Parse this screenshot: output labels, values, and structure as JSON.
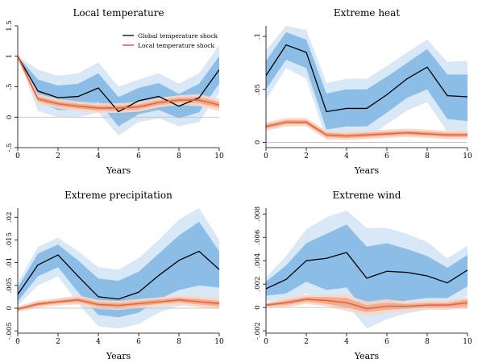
{
  "chart_data": [
    {
      "type": "line",
      "title": "Local temperature",
      "xlabel": "Years",
      "x": [
        0,
        1,
        2,
        3,
        4,
        5,
        6,
        7,
        8,
        9,
        10
      ],
      "xlim": [
        0,
        10
      ],
      "xticks": [
        0,
        2,
        4,
        6,
        8,
        10
      ],
      "ylim": [
        -0.5,
        1.5
      ],
      "yticks": [
        -0.5,
        0,
        0.5,
        1,
        1.5
      ],
      "ytick_labels": [
        "-.5",
        "0",
        ".5",
        "1",
        "1.5"
      ],
      "legend": {
        "position": "top-right",
        "entries": [
          "Global temperature shock",
          "Local temperature shock"
        ]
      },
      "series": [
        {
          "name": "Global temperature shock",
          "color": "#000000",
          "values": [
            1.0,
            0.43,
            0.32,
            0.34,
            0.48,
            0.09,
            0.27,
            0.34,
            0.18,
            0.32,
            0.78
          ],
          "band_inner": {
            "lower": [
              1.0,
              0.25,
              0.12,
              0.12,
              0.25,
              -0.15,
              0.05,
              0.12,
              -0.02,
              0.08,
              0.55
            ],
            "upper": [
              1.0,
              0.62,
              0.52,
              0.55,
              0.72,
              0.33,
              0.48,
              0.56,
              0.38,
              0.55,
              1.0
            ]
          },
          "band_outer": {
            "lower": [
              1.0,
              0.1,
              0.0,
              0.0,
              0.08,
              -0.3,
              -0.08,
              -0.02,
              -0.15,
              -0.08,
              0.4
            ],
            "upper": [
              1.0,
              0.78,
              0.68,
              0.72,
              0.9,
              0.5,
              0.62,
              0.72,
              0.55,
              0.72,
              1.18
            ]
          }
        },
        {
          "name": "Local temperature shock",
          "color": "#e8643a",
          "values": [
            1.0,
            0.3,
            0.22,
            0.18,
            0.15,
            0.15,
            0.17,
            0.24,
            0.28,
            0.28,
            0.2
          ],
          "band_inner": {
            "lower": [
              0.97,
              0.26,
              0.18,
              0.14,
              0.11,
              0.11,
              0.13,
              0.2,
              0.24,
              0.23,
              0.15
            ],
            "upper": [
              1.03,
              0.34,
              0.26,
              0.22,
              0.19,
              0.19,
              0.21,
              0.28,
              0.32,
              0.33,
              0.25
            ]
          },
          "band_outer": {
            "lower": [
              0.94,
              0.22,
              0.14,
              0.1,
              0.07,
              0.07,
              0.09,
              0.16,
              0.2,
              0.18,
              0.1
            ],
            "upper": [
              1.06,
              0.38,
              0.3,
              0.26,
              0.23,
              0.23,
              0.25,
              0.32,
              0.36,
              0.38,
              0.3
            ]
          }
        }
      ]
    },
    {
      "type": "line",
      "title": "Extreme heat",
      "xlabel": "Years",
      "x": [
        0,
        1,
        2,
        3,
        4,
        5,
        6,
        7,
        8,
        9,
        10
      ],
      "xlim": [
        0,
        10
      ],
      "xticks": [
        0,
        2,
        4,
        6,
        8,
        10
      ],
      "ylim": [
        -0.005,
        0.11
      ],
      "yticks": [
        0,
        0.05,
        0.1
      ],
      "ytick_labels": [
        "0",
        ".05",
        ".1"
      ],
      "series": [
        {
          "name": "Global temperature shock",
          "color": "#000000",
          "values": [
            0.063,
            0.092,
            0.085,
            0.029,
            0.032,
            0.032,
            0.045,
            0.06,
            0.071,
            0.044,
            0.043
          ],
          "band_inner": {
            "lower": [
              0.05,
              0.078,
              0.07,
              0.012,
              0.015,
              0.015,
              0.028,
              0.042,
              0.05,
              0.022,
              0.02
            ],
            "upper": [
              0.077,
              0.104,
              0.097,
              0.046,
              0.05,
              0.05,
              0.062,
              0.075,
              0.088,
              0.064,
              0.064
            ]
          },
          "band_outer": {
            "lower": [
              0.04,
              0.07,
              0.06,
              0.002,
              0.004,
              0.004,
              0.017,
              0.03,
              0.038,
              0.01,
              0.008
            ],
            "upper": [
              0.087,
              0.11,
              0.106,
              0.056,
              0.06,
              0.06,
              0.072,
              0.085,
              0.097,
              0.076,
              0.077
            ]
          }
        },
        {
          "name": "Local temperature shock",
          "color": "#e8643a",
          "values": [
            0.015,
            0.019,
            0.019,
            0.007,
            0.006,
            0.007,
            0.008,
            0.009,
            0.008,
            0.007,
            0.007
          ],
          "band_inner": {
            "lower": [
              0.013,
              0.017,
              0.017,
              0.005,
              0.004,
              0.005,
              0.006,
              0.007,
              0.006,
              0.005,
              0.005
            ],
            "upper": [
              0.017,
              0.021,
              0.021,
              0.009,
              0.008,
              0.009,
              0.01,
              0.011,
              0.01,
              0.009,
              0.009
            ]
          },
          "band_outer": {
            "lower": [
              0.011,
              0.015,
              0.015,
              0.003,
              0.002,
              0.003,
              0.004,
              0.005,
              0.004,
              0.003,
              0.003
            ],
            "upper": [
              0.019,
              0.023,
              0.023,
              0.011,
              0.01,
              0.011,
              0.012,
              0.013,
              0.012,
              0.011,
              0.011
            ]
          }
        }
      ]
    },
    {
      "type": "line",
      "title": "Extreme precipitation",
      "xlabel": "Years",
      "x": [
        0,
        1,
        2,
        3,
        4,
        5,
        6,
        7,
        8,
        9,
        10
      ],
      "xlim": [
        0,
        10
      ],
      "xticks": [
        0,
        2,
        4,
        6,
        8,
        10
      ],
      "ylim": [
        -0.0055,
        0.022
      ],
      "yticks": [
        -0.005,
        0,
        0.005,
        0.01,
        0.015,
        0.02
      ],
      "ytick_labels": [
        "-.005",
        "0",
        ".005",
        ".01",
        ".015",
        ".02"
      ],
      "series": [
        {
          "name": "Global temperature shock",
          "color": "#000000",
          "values": [
            0.003,
            0.0095,
            0.0117,
            0.007,
            0.0025,
            0.002,
            0.0035,
            0.0072,
            0.0105,
            0.0125,
            0.0085
          ],
          "band_inner": {
            "lower": [
              0.0015,
              0.007,
              0.009,
              0.0035,
              -0.0015,
              -0.002,
              -0.001,
              0.002,
              0.004,
              0.005,
              0.0045
            ],
            "upper": [
              0.0045,
              0.012,
              0.014,
              0.0105,
              0.0065,
              0.006,
              0.008,
              0.012,
              0.016,
              0.019,
              0.0125
            ]
          },
          "band_outer": {
            "lower": [
              0.0005,
              0.005,
              0.007,
              0.001,
              -0.004,
              -0.0045,
              -0.0035,
              -0.001,
              0.0005,
              0.001,
              0.002
            ],
            "upper": [
              0.0055,
              0.0135,
              0.0155,
              0.0125,
              0.009,
              0.0085,
              0.011,
              0.015,
              0.0195,
              0.022,
              0.015
            ]
          }
        },
        {
          "name": "Local temperature shock",
          "color": "#e8643a",
          "values": [
            -0.0002,
            0.0009,
            0.0014,
            0.0018,
            0.0008,
            0.0006,
            0.001,
            0.0014,
            0.0018,
            0.0014,
            0.001
          ],
          "band_inner": {
            "lower": [
              -0.0005,
              0.0005,
              0.001,
              0.0013,
              0.0003,
              0.0001,
              0.0005,
              0.0009,
              0.0013,
              0.0008,
              0.0004
            ],
            "upper": [
              0.0001,
              0.0013,
              0.0018,
              0.0023,
              0.0013,
              0.0011,
              0.0015,
              0.0019,
              0.0023,
              0.002,
              0.0016
            ]
          },
          "band_outer": {
            "lower": [
              -0.0008,
              0.0001,
              0.0006,
              0.0008,
              -0.0002,
              -0.0004,
              0.0,
              0.0004,
              0.0008,
              0.0002,
              -0.0002
            ],
            "upper": [
              0.0004,
              0.0017,
              0.0022,
              0.0028,
              0.0018,
              0.0016,
              0.002,
              0.0024,
              0.0028,
              0.0026,
              0.0022
            ]
          }
        }
      ]
    },
    {
      "type": "line",
      "title": "Extreme wind",
      "xlabel": "Years",
      "x": [
        0,
        1,
        2,
        3,
        4,
        5,
        6,
        7,
        8,
        9,
        10
      ],
      "xlim": [
        0,
        10
      ],
      "xticks": [
        0,
        2,
        4,
        6,
        8,
        10
      ],
      "ylim": [
        -0.0022,
        0.0085
      ],
      "yticks": [
        -0.002,
        0,
        0.002,
        0.004,
        0.006,
        0.008
      ],
      "ytick_labels": [
        "-.002",
        "0",
        ".002",
        ".004",
        ".006",
        ".008"
      ],
      "series": [
        {
          "name": "Global temperature shock",
          "color": "#000000",
          "values": [
            0.0016,
            0.0024,
            0.004,
            0.0042,
            0.0047,
            0.0025,
            0.0031,
            0.003,
            0.0027,
            0.0021,
            0.0032
          ],
          "band_inner": {
            "lower": [
              0.001,
              0.0012,
              0.0022,
              0.0015,
              0.0017,
              -0.0005,
              0.0002,
              0.0006,
              0.0008,
              0.0008,
              0.0018
            ],
            "upper": [
              0.0022,
              0.0036,
              0.0055,
              0.0063,
              0.0071,
              0.0052,
              0.0055,
              0.005,
              0.0044,
              0.0034,
              0.0045
            ]
          },
          "band_outer": {
            "lower": [
              0.0006,
              0.0004,
              0.0012,
              0.0004,
              0.0003,
              -0.0018,
              -0.001,
              -0.0005,
              -0.0002,
              0.0002,
              0.001
            ],
            "upper": [
              0.0026,
              0.0044,
              0.0067,
              0.0077,
              0.0083,
              0.0068,
              0.0068,
              0.0063,
              0.0056,
              0.0042,
              0.0053
            ]
          }
        },
        {
          "name": "Local temperature shock",
          "color": "#e8643a",
          "values": [
            0.0002,
            0.0004,
            0.0007,
            0.0006,
            0.0004,
            -0.0001,
            0.0001,
            0.0001,
            0.0002,
            0.0002,
            0.0004
          ],
          "band_inner": {
            "lower": [
              0.0001,
              0.0002,
              0.0005,
              0.0003,
              0.0,
              -0.0004,
              -0.0002,
              -0.0001,
              0.0,
              0.0,
              0.0001
            ],
            "upper": [
              0.0003,
              0.0006,
              0.0009,
              0.0009,
              0.0008,
              0.0002,
              0.0004,
              0.0003,
              0.0004,
              0.0004,
              0.0007
            ]
          },
          "band_outer": {
            "lower": [
              0.0,
              0.0,
              0.0003,
              0.0001,
              -0.0003,
              -0.0007,
              -0.0005,
              -0.0003,
              -0.0002,
              -0.0002,
              -0.0001
            ],
            "upper": [
              0.0004,
              0.0008,
              0.0011,
              0.0011,
              0.0011,
              0.0005,
              0.0007,
              0.0005,
              0.0006,
              0.0006,
              0.0009
            ]
          }
        }
      ]
    }
  ],
  "colors": {
    "band_global_outer": "#d9e8f6",
    "band_global_inner": "#8cbde6",
    "band_local_outer": "#f8d7c8",
    "band_local_inner": "#f0a98a",
    "zero_line": "#bdbdbd"
  }
}
